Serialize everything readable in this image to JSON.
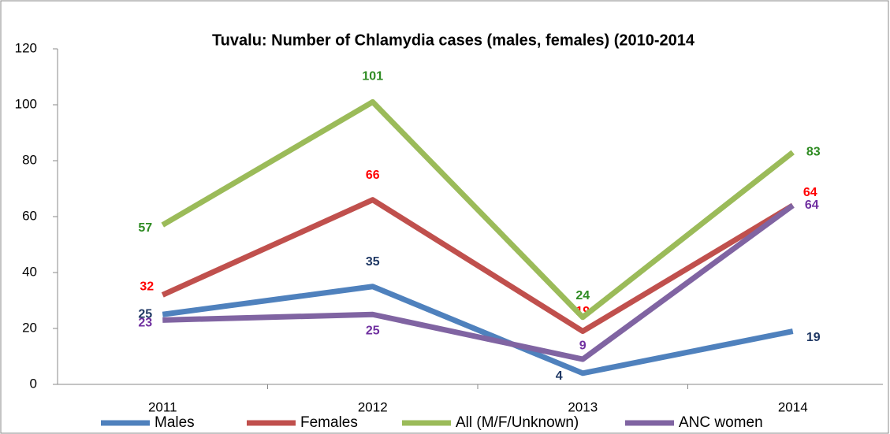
{
  "chart_data": {
    "type": "line",
    "title": "Tuvalu: Number of Chlamydia cases (males, females) (2010-2014",
    "categories": [
      "2011",
      "2012",
      "2013",
      "2014"
    ],
    "series": [
      {
        "name": "Males",
        "color": "#4f81bd",
        "label_color": "#1f3864",
        "values": [
          25,
          35,
          4,
          19
        ]
      },
      {
        "name": "Females",
        "color": "#c0504d",
        "label_color": "#ff0000",
        "values": [
          32,
          66,
          19,
          64
        ]
      },
      {
        "name": "All (M/F/Unknown)",
        "color": "#9bbb59",
        "label_color": "#2e8b22",
        "values": [
          57,
          101,
          24,
          83
        ]
      },
      {
        "name": "ANC women",
        "color": "#8064a2",
        "label_color": "#7030a0",
        "values": [
          23,
          25,
          9,
          64
        ]
      }
    ],
    "ylim": [
      0,
      120
    ],
    "yticks": [
      0,
      20,
      40,
      60,
      80,
      100,
      120
    ],
    "grid": false,
    "legend": "bottom"
  }
}
